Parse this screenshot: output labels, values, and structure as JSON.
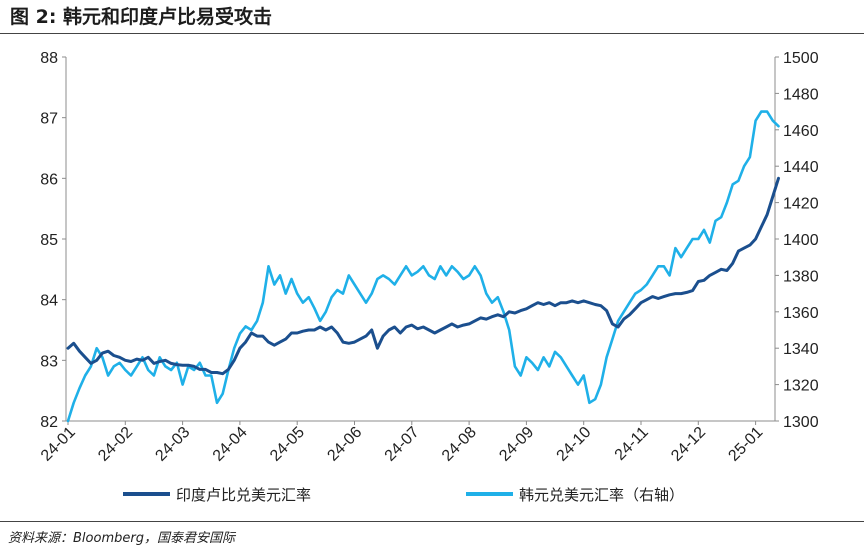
{
  "header": {
    "title": "图 2:  韩元和印度卢比易受攻击"
  },
  "footer": {
    "source": "资料来源：Bloomberg，国泰君安国际"
  },
  "colors": {
    "inr": "#1b4f8e",
    "krw": "#1fb0e8",
    "axis": "#8c8c8c"
  },
  "chart_data": {
    "type": "line",
    "x_categories": [
      "24-01",
      "24-02",
      "24-03",
      "24-04",
      "24-05",
      "24-06",
      "24-07",
      "24-08",
      "24-09",
      "24-10",
      "24-11",
      "24-12",
      "25-01"
    ],
    "y_left": {
      "ylim": [
        82,
        88
      ],
      "ticks": [
        "82",
        "83",
        "84",
        "85",
        "86",
        "87",
        "88"
      ]
    },
    "y_right": {
      "ylim": [
        1300,
        1500
      ],
      "ticks": [
        "1300",
        "1320",
        "1340",
        "1360",
        "1380",
        "1400",
        "1420",
        "1440",
        "1460",
        "1480",
        "1500"
      ]
    },
    "series": [
      {
        "name": "印度卢比兑美元汇率",
        "axis": "left",
        "color": "#1b4f8e",
        "x": [
          0,
          0.1,
          0.2,
          0.3,
          0.4,
          0.5,
          0.6,
          0.7,
          0.8,
          0.9,
          1.0,
          1.1,
          1.2,
          1.3,
          1.4,
          1.5,
          1.6,
          1.7,
          1.8,
          1.9,
          2.0,
          2.1,
          2.2,
          2.3,
          2.4,
          2.5,
          2.6,
          2.7,
          2.8,
          2.9,
          3.0,
          3.1,
          3.2,
          3.3,
          3.4,
          3.5,
          3.6,
          3.7,
          3.8,
          3.9,
          4.0,
          4.1,
          4.2,
          4.3,
          4.4,
          4.5,
          4.6,
          4.7,
          4.8,
          4.9,
          5.0,
          5.1,
          5.2,
          5.3,
          5.4,
          5.5,
          5.6,
          5.7,
          5.8,
          5.9,
          6.0,
          6.1,
          6.2,
          6.3,
          6.4,
          6.5,
          6.6,
          6.7,
          6.8,
          6.9,
          7.0,
          7.1,
          7.2,
          7.3,
          7.4,
          7.5,
          7.6,
          7.7,
          7.8,
          7.9,
          8.0,
          8.1,
          8.2,
          8.3,
          8.4,
          8.5,
          8.6,
          8.7,
          8.8,
          8.9,
          9.0,
          9.1,
          9.2,
          9.3,
          9.4,
          9.5,
          9.6,
          9.7,
          9.8,
          9.9,
          10.0,
          10.1,
          10.2,
          10.3,
          10.4,
          10.5,
          10.6,
          10.7,
          10.8,
          10.9,
          11.0,
          11.1,
          11.2,
          11.3,
          11.4,
          11.5,
          11.6,
          11.7,
          11.8,
          11.9,
          12.0,
          12.1,
          12.2,
          12.3,
          12.4
        ],
        "values": [
          83.2,
          83.28,
          83.15,
          83.05,
          82.95,
          83.0,
          83.12,
          83.15,
          83.08,
          83.05,
          83.0,
          82.98,
          83.02,
          83.0,
          83.05,
          82.95,
          82.98,
          83.0,
          82.95,
          82.93,
          82.92,
          82.92,
          82.9,
          82.85,
          82.85,
          82.8,
          82.8,
          82.78,
          82.85,
          83.0,
          83.2,
          83.3,
          83.45,
          83.4,
          83.4,
          83.3,
          83.25,
          83.3,
          83.35,
          83.45,
          83.45,
          83.48,
          83.5,
          83.5,
          83.55,
          83.5,
          83.55,
          83.45,
          83.3,
          83.28,
          83.3,
          83.35,
          83.4,
          83.5,
          83.2,
          83.4,
          83.5,
          83.55,
          83.45,
          83.55,
          83.58,
          83.52,
          83.55,
          83.5,
          83.45,
          83.5,
          83.55,
          83.6,
          83.55,
          83.58,
          83.6,
          83.65,
          83.7,
          83.68,
          83.72,
          83.75,
          83.72,
          83.8,
          83.78,
          83.82,
          83.85,
          83.9,
          83.95,
          83.92,
          83.95,
          83.9,
          83.95,
          83.95,
          83.98,
          83.95,
          83.98,
          83.95,
          83.92,
          83.9,
          83.82,
          83.6,
          83.55,
          83.68,
          83.75,
          83.85,
          83.95,
          84.0,
          84.05,
          84.02,
          84.05,
          84.08,
          84.1,
          84.1,
          84.12,
          84.15,
          84.3,
          84.32,
          84.4,
          84.45,
          84.5,
          84.48,
          84.6,
          84.8,
          84.85,
          84.9,
          85.0,
          85.2,
          85.4,
          85.7,
          86.0
        ]
      },
      {
        "name": "韩元兑美元汇率（右轴）",
        "axis": "right",
        "color": "#1fb0e8",
        "x": [
          0,
          0.1,
          0.2,
          0.3,
          0.4,
          0.5,
          0.6,
          0.7,
          0.8,
          0.9,
          1.0,
          1.1,
          1.2,
          1.3,
          1.4,
          1.5,
          1.6,
          1.7,
          1.8,
          1.9,
          2.0,
          2.1,
          2.2,
          2.3,
          2.4,
          2.5,
          2.6,
          2.7,
          2.8,
          2.9,
          3.0,
          3.1,
          3.2,
          3.3,
          3.4,
          3.5,
          3.6,
          3.7,
          3.8,
          3.9,
          4.0,
          4.1,
          4.2,
          4.3,
          4.4,
          4.5,
          4.6,
          4.7,
          4.8,
          4.9,
          5.0,
          5.1,
          5.2,
          5.3,
          5.4,
          5.5,
          5.6,
          5.7,
          5.8,
          5.9,
          6.0,
          6.1,
          6.2,
          6.3,
          6.4,
          6.5,
          6.6,
          6.7,
          6.8,
          6.9,
          7.0,
          7.1,
          7.2,
          7.3,
          7.4,
          7.5,
          7.6,
          7.7,
          7.8,
          7.9,
          8.0,
          8.1,
          8.2,
          8.3,
          8.4,
          8.5,
          8.6,
          8.7,
          8.8,
          8.9,
          9.0,
          9.1,
          9.2,
          9.3,
          9.4,
          9.5,
          9.6,
          9.7,
          9.8,
          9.9,
          10.0,
          10.1,
          10.2,
          10.3,
          10.4,
          10.5,
          10.6,
          10.7,
          10.8,
          10.9,
          11.0,
          11.1,
          11.2,
          11.3,
          11.4,
          11.5,
          11.6,
          11.7,
          11.8,
          11.9,
          12.0,
          12.1,
          12.2,
          12.3,
          12.4
        ],
        "values": [
          1300,
          1310,
          1318,
          1325,
          1330,
          1340,
          1335,
          1325,
          1330,
          1332,
          1328,
          1325,
          1330,
          1335,
          1328,
          1325,
          1335,
          1330,
          1328,
          1332,
          1320,
          1330,
          1328,
          1332,
          1325,
          1325,
          1310,
          1315,
          1328,
          1340,
          1348,
          1352,
          1350,
          1355,
          1365,
          1385,
          1375,
          1380,
          1370,
          1378,
          1370,
          1365,
          1368,
          1362,
          1355,
          1360,
          1368,
          1372,
          1370,
          1380,
          1375,
          1370,
          1365,
          1370,
          1378,
          1380,
          1378,
          1375,
          1380,
          1385,
          1380,
          1382,
          1385,
          1380,
          1378,
          1385,
          1380,
          1385,
          1382,
          1378,
          1380,
          1385,
          1380,
          1370,
          1365,
          1368,
          1360,
          1350,
          1330,
          1325,
          1335,
          1332,
          1328,
          1335,
          1330,
          1338,
          1335,
          1330,
          1325,
          1320,
          1325,
          1310,
          1312,
          1320,
          1335,
          1345,
          1355,
          1360,
          1365,
          1370,
          1372,
          1375,
          1380,
          1385,
          1385,
          1380,
          1395,
          1390,
          1395,
          1400,
          1400,
          1405,
          1398,
          1410,
          1412,
          1420,
          1430,
          1432,
          1440,
          1445,
          1465,
          1470,
          1470,
          1465,
          1462
        ]
      }
    ],
    "legend": {
      "placement": "bottom"
    }
  }
}
